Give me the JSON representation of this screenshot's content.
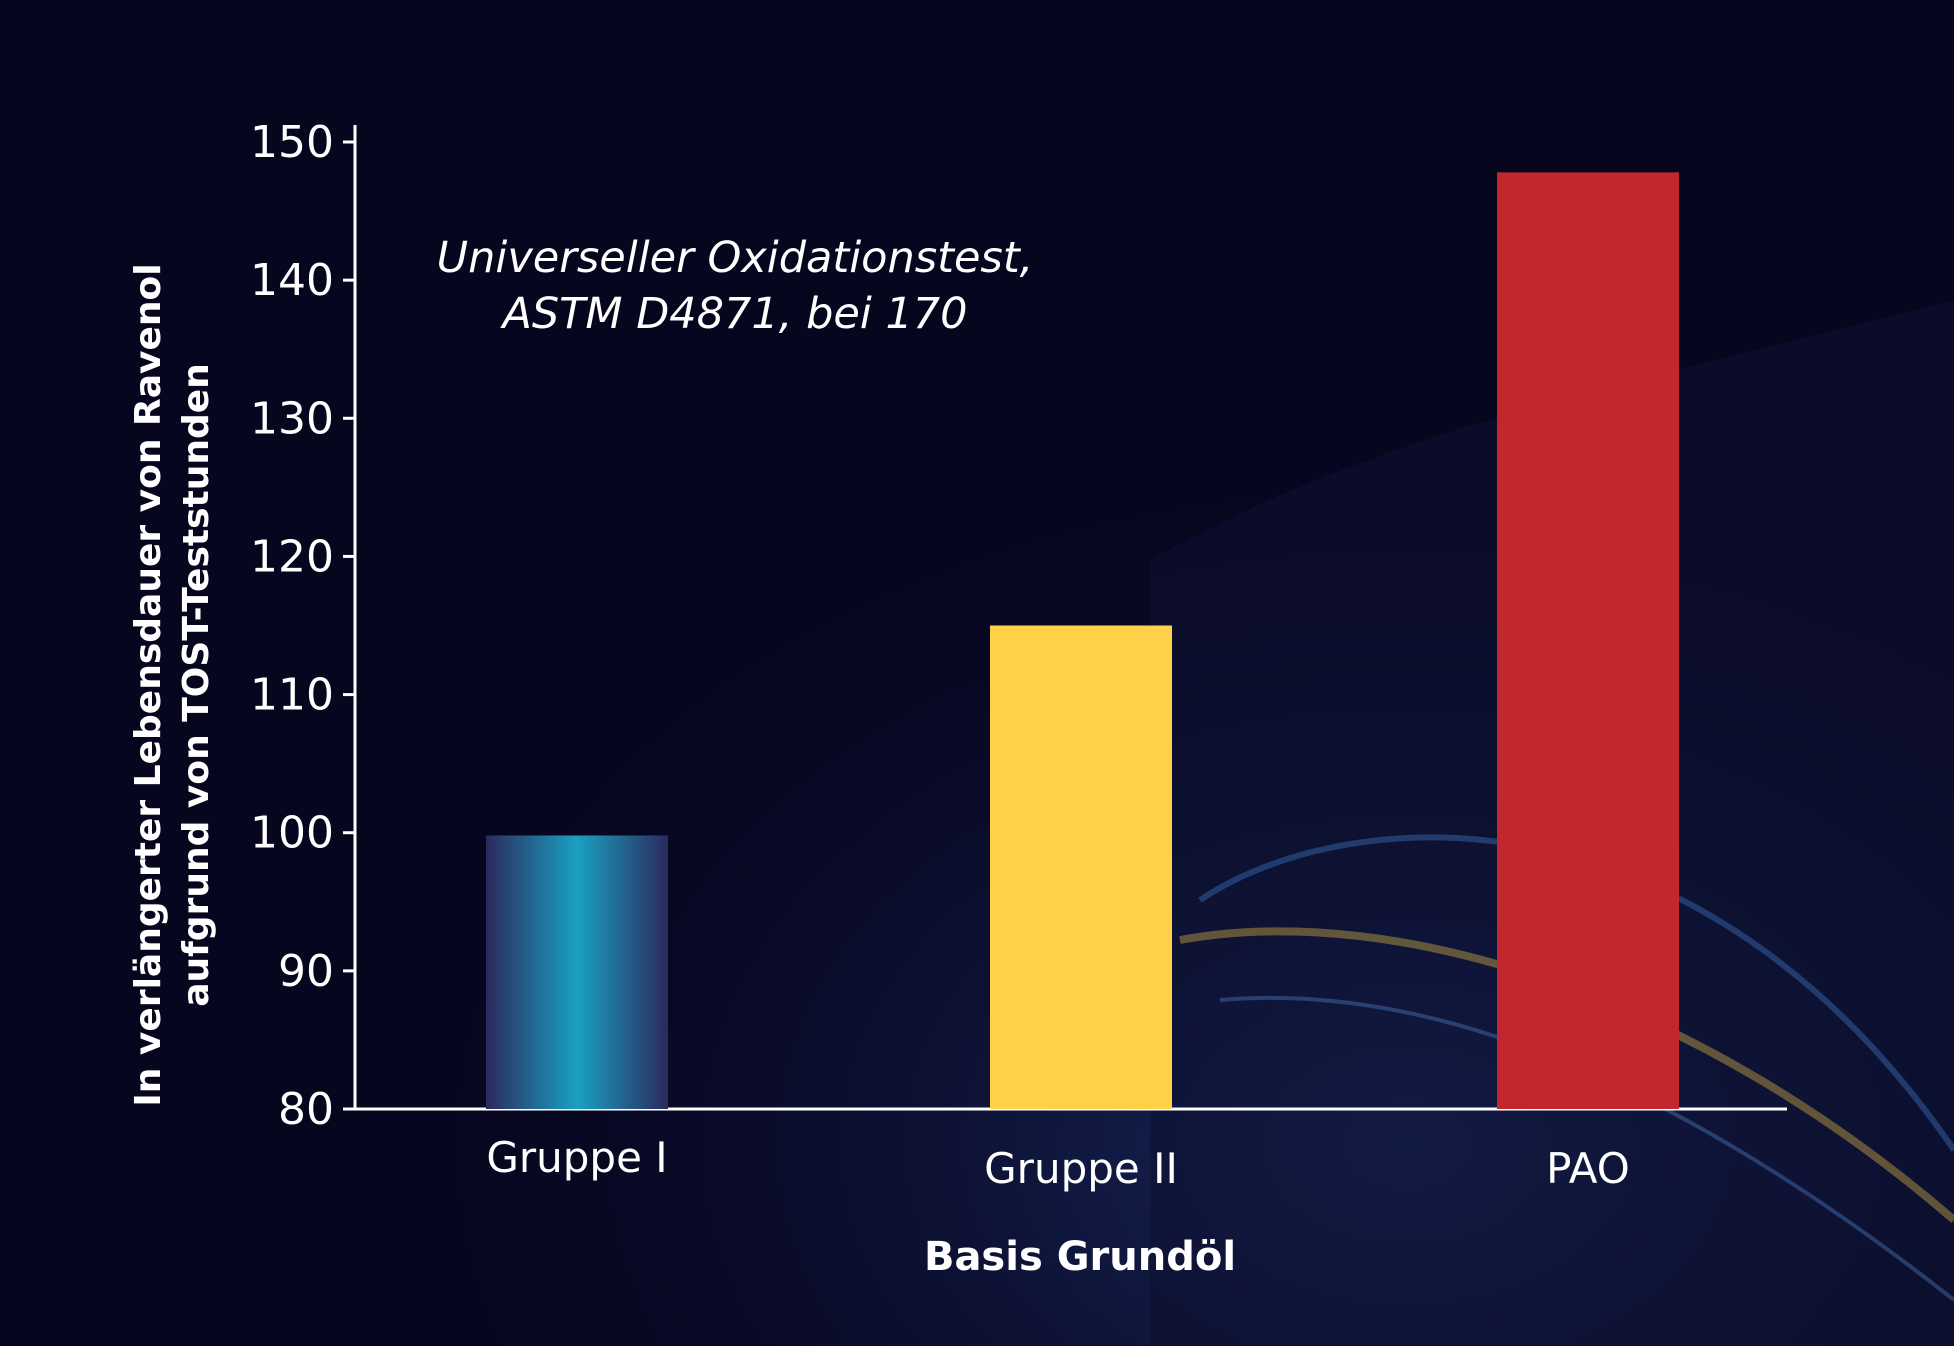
{
  "chart_data": {
    "type": "bar",
    "categories": [
      "Gruppe I",
      "Gruppe II",
      "PAO"
    ],
    "values": [
      99.8,
      115,
      147.8
    ],
    "ylim": [
      80,
      150
    ],
    "yticks": [
      80,
      90,
      100,
      110,
      120,
      130,
      140,
      150
    ],
    "ylabel_line1": "In verlängerter Lebensdauer von Ravenol",
    "ylabel_line2": "aufgrund von TOST-Teststunden",
    "xlabel": "Basis Grundöl",
    "annotation_line1": "Universeller Oxidationstest,",
    "annotation_line2": "ASTM D4871, bei 170",
    "grid": false,
    "bar_colors": [
      "#1aa0c3",
      "#ffd149",
      "#c1272d"
    ]
  }
}
